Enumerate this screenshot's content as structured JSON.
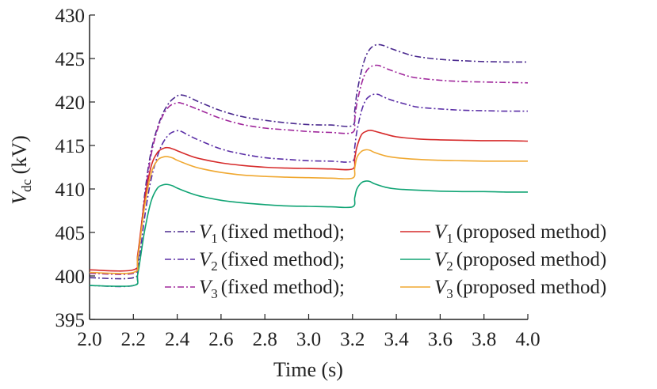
{
  "chart_data": {
    "type": "line",
    "xlabel": "Time (s)",
    "ylabel": {
      "main": "V",
      "sub": "dc",
      "suffix": " (kV)"
    },
    "xlim": [
      2.0,
      4.0
    ],
    "ylim": [
      395,
      430
    ],
    "xticks": [
      2.0,
      2.2,
      2.4,
      2.6,
      2.8,
      3.0,
      3.2,
      3.4,
      3.6,
      3.8,
      4.0
    ],
    "xtick_labels": [
      "2.0",
      "2.2",
      "2.4",
      "2.6",
      "2.8",
      "3.0",
      "3.2",
      "3.4",
      "3.6",
      "3.8",
      "4.0"
    ],
    "yticks": [
      395,
      400,
      405,
      410,
      415,
      420,
      425,
      430
    ],
    "ytick_labels": [
      "395",
      "400",
      "405",
      "410",
      "415",
      "420",
      "425",
      "430"
    ],
    "grid": false,
    "legend_position": "lower-right",
    "series": [
      {
        "legend": {
          "var": "V",
          "sub": "1",
          "text": "(fixed method);"
        },
        "color": "#4b2a8f",
        "dash": "8,3,2,3",
        "x": [
          2.0,
          2.2,
          2.22,
          2.25,
          2.28,
          2.32,
          2.36,
          2.4,
          2.42,
          2.45,
          2.5,
          2.6,
          2.7,
          2.8,
          2.9,
          3.0,
          3.1,
          3.2,
          3.21,
          3.22,
          3.24,
          3.26,
          3.28,
          3.3,
          3.32,
          3.34,
          3.38,
          3.45,
          3.5,
          3.6,
          3.7,
          3.8,
          3.9,
          4.0
        ],
        "y": [
          399.8,
          399.8,
          401.5,
          409.0,
          414.2,
          417.8,
          419.8,
          420.7,
          420.8,
          420.6,
          420.0,
          419.0,
          418.3,
          417.9,
          417.6,
          417.4,
          417.35,
          417.3,
          419.0,
          421.0,
          423.5,
          425.2,
          426.1,
          426.5,
          426.6,
          426.5,
          426.1,
          425.5,
          425.2,
          424.9,
          424.75,
          424.65,
          424.6,
          424.6
        ]
      },
      {
        "legend": {
          "var": "V",
          "sub": "2",
          "text": "(fixed method);"
        },
        "color": "#5a2ea6",
        "dash": "8,3,2,3",
        "x": [
          2.0,
          2.2,
          2.22,
          2.25,
          2.28,
          2.32,
          2.36,
          2.4,
          2.42,
          2.45,
          2.5,
          2.6,
          2.7,
          2.8,
          2.9,
          3.0,
          3.1,
          3.2,
          3.21,
          3.22,
          3.24,
          3.26,
          3.28,
          3.3,
          3.32,
          3.34,
          3.38,
          3.45,
          3.5,
          3.6,
          3.7,
          3.8,
          3.9,
          4.0
        ],
        "y": [
          398.9,
          398.9,
          400.5,
          406.5,
          411.0,
          414.5,
          416.2,
          416.7,
          416.6,
          416.2,
          415.6,
          414.6,
          414.0,
          413.6,
          413.4,
          413.25,
          413.2,
          413.2,
          414.8,
          416.6,
          418.9,
          420.2,
          420.7,
          420.9,
          420.85,
          420.6,
          420.2,
          419.7,
          419.4,
          419.2,
          419.05,
          419.0,
          418.95,
          418.95
        ]
      },
      {
        "legend": {
          "var": "V",
          "sub": "3",
          "text": "(fixed method);"
        },
        "color": "#a0289c",
        "dash": "8,3,2,3",
        "x": [
          2.0,
          2.2,
          2.22,
          2.25,
          2.28,
          2.32,
          2.36,
          2.4,
          2.42,
          2.45,
          2.5,
          2.6,
          2.7,
          2.8,
          2.9,
          3.0,
          3.1,
          3.2,
          3.21,
          3.22,
          3.24,
          3.26,
          3.28,
          3.3,
          3.32,
          3.34,
          3.38,
          3.45,
          3.5,
          3.6,
          3.7,
          3.8,
          3.9,
          4.0
        ],
        "y": [
          400.3,
          400.3,
          402.0,
          408.5,
          413.8,
          417.6,
          419.4,
          419.9,
          419.85,
          419.6,
          419.1,
          418.1,
          417.4,
          417.0,
          416.8,
          416.6,
          416.5,
          416.5,
          418.0,
          419.8,
          422.0,
          423.4,
          424.0,
          424.2,
          424.2,
          424.0,
          423.6,
          423.0,
          422.75,
          422.5,
          422.35,
          422.3,
          422.25,
          422.2
        ]
      },
      {
        "legend": {
          "var": "V",
          "sub": "1",
          "text": "(proposed method)"
        },
        "color": "#d62a2a",
        "dash": "",
        "x": [
          2.0,
          2.2,
          2.22,
          2.25,
          2.28,
          2.31,
          2.34,
          2.36,
          2.38,
          2.4,
          2.45,
          2.5,
          2.6,
          2.7,
          2.8,
          2.9,
          3.0,
          3.1,
          3.2,
          3.21,
          3.22,
          3.24,
          3.26,
          3.28,
          3.3,
          3.35,
          3.4,
          3.5,
          3.6,
          3.7,
          3.8,
          3.9,
          4.0
        ],
        "y": [
          400.7,
          400.7,
          402.5,
          408.5,
          412.5,
          414.2,
          414.7,
          414.75,
          414.6,
          414.4,
          413.9,
          413.5,
          413.0,
          412.7,
          412.5,
          412.4,
          412.35,
          412.3,
          412.3,
          413.5,
          414.8,
          416.2,
          416.6,
          416.75,
          416.65,
          416.3,
          416.0,
          415.75,
          415.65,
          415.6,
          415.55,
          415.55,
          415.5
        ]
      },
      {
        "legend": {
          "var": "V",
          "sub": "2",
          "text": "(proposed method)"
        },
        "color": "#10a474",
        "dash": "",
        "x": [
          2.0,
          2.2,
          2.22,
          2.25,
          2.28,
          2.31,
          2.34,
          2.36,
          2.38,
          2.4,
          2.45,
          2.5,
          2.6,
          2.7,
          2.8,
          2.9,
          3.0,
          3.1,
          3.2,
          3.21,
          3.22,
          3.24,
          3.26,
          3.28,
          3.3,
          3.35,
          3.4,
          3.5,
          3.6,
          3.7,
          3.8,
          3.9,
          4.0
        ],
        "y": [
          398.9,
          398.9,
          400.2,
          405.0,
          408.5,
          410.1,
          410.5,
          410.5,
          410.35,
          410.1,
          409.6,
          409.2,
          408.7,
          408.4,
          408.2,
          408.05,
          408.0,
          407.95,
          407.95,
          409.0,
          410.0,
          410.7,
          410.9,
          410.85,
          410.6,
          410.2,
          410.0,
          409.85,
          409.75,
          409.7,
          409.7,
          409.65,
          409.65
        ]
      },
      {
        "legend": {
          "var": "V",
          "sub": "3",
          "text": "(proposed method)"
        },
        "color": "#f0a830",
        "dash": "",
        "x": [
          2.0,
          2.2,
          2.22,
          2.25,
          2.28,
          2.31,
          2.34,
          2.36,
          2.38,
          2.4,
          2.45,
          2.5,
          2.6,
          2.7,
          2.8,
          2.9,
          3.0,
          3.1,
          3.2,
          3.21,
          3.22,
          3.24,
          3.26,
          3.28,
          3.3,
          3.35,
          3.4,
          3.5,
          3.6,
          3.7,
          3.8,
          3.9,
          4.0
        ],
        "y": [
          400.4,
          400.4,
          402.1,
          407.8,
          411.7,
          413.3,
          413.7,
          413.7,
          413.55,
          413.3,
          412.8,
          412.4,
          411.9,
          411.6,
          411.45,
          411.35,
          411.3,
          411.25,
          411.25,
          412.4,
          413.6,
          414.3,
          414.5,
          414.45,
          414.2,
          413.8,
          413.6,
          413.4,
          413.3,
          413.25,
          413.2,
          413.2,
          413.2
        ]
      }
    ]
  }
}
